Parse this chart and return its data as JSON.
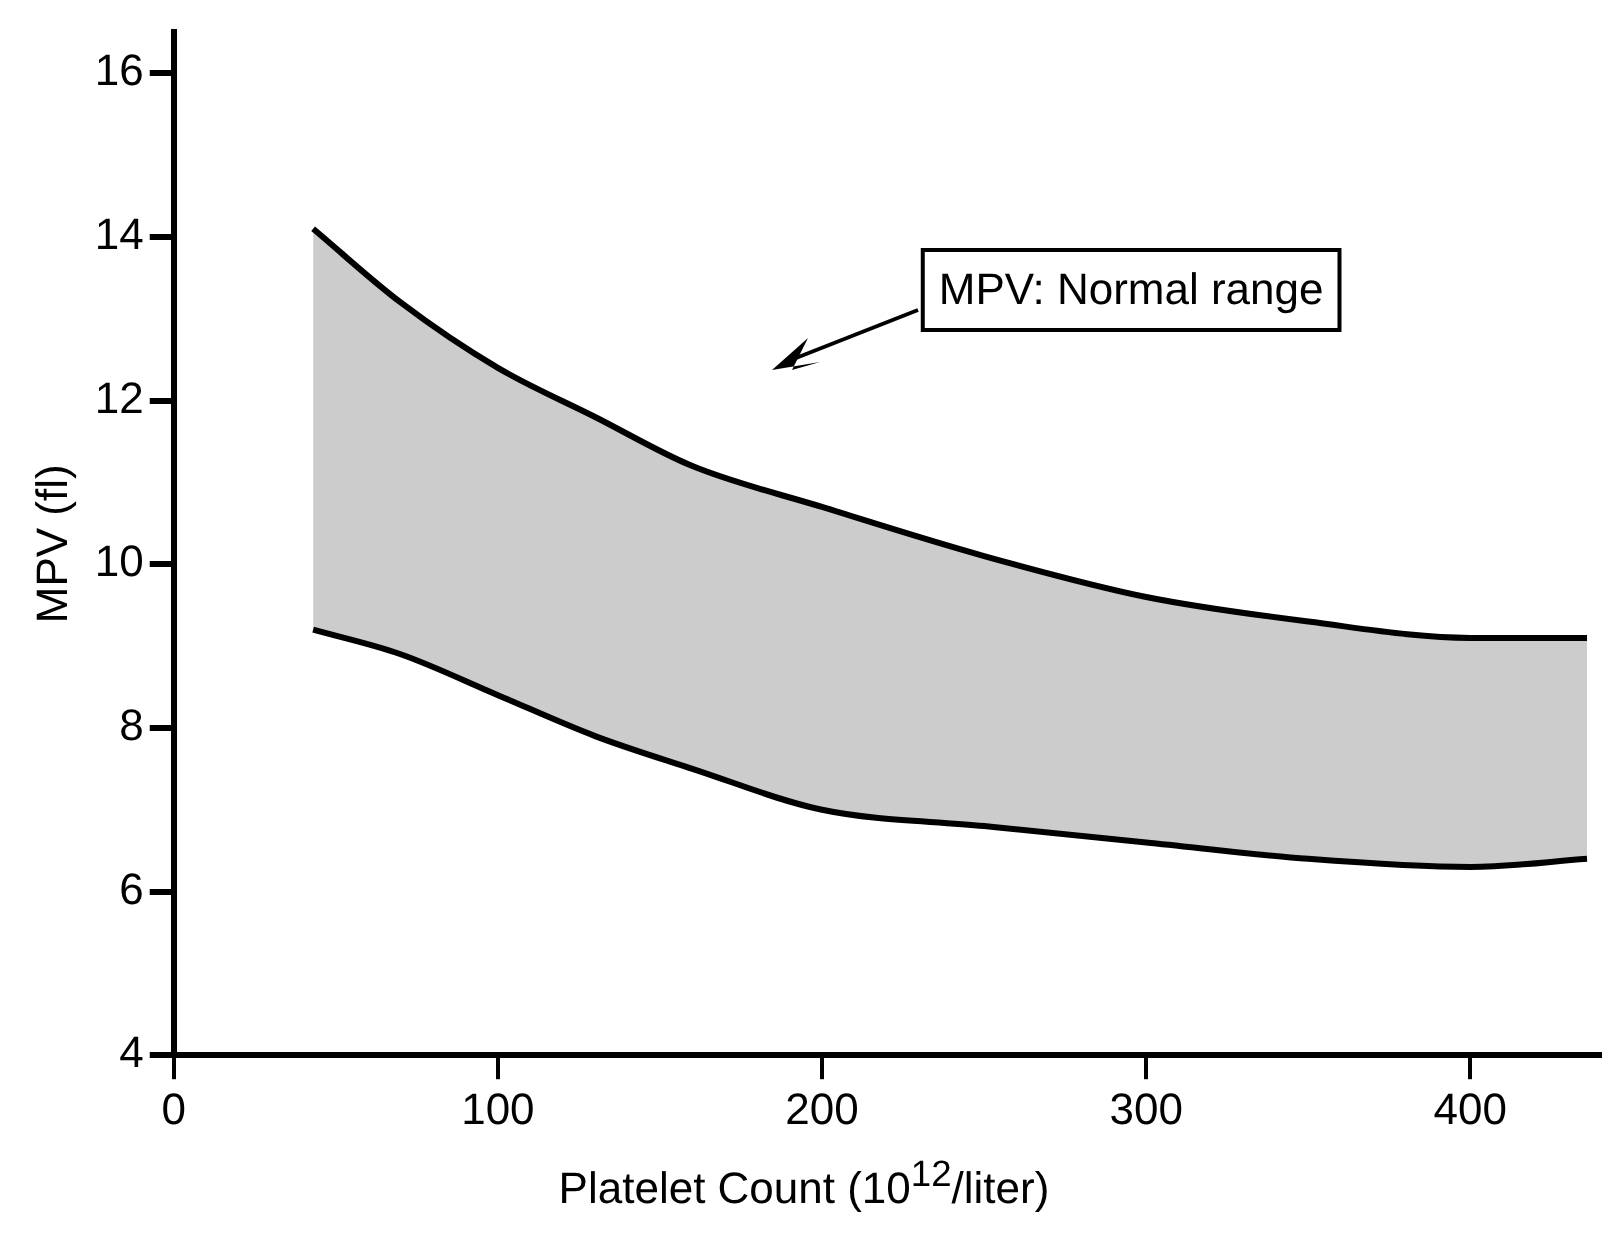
{
  "chart_data": {
    "type": "line",
    "xlabel": "Platelet Count (10$^{12}$/liter)",
    "ylabel": "MPV (fl)",
    "x": [
      43,
      70,
      100,
      130,
      160,
      200,
      250,
      300,
      350,
      400,
      436
    ],
    "series": [
      {
        "color": "#000000",
        "values": [
          9.2,
          8.9,
          8.4,
          7.9,
          7.5,
          7.0,
          6.8,
          6.6,
          6.4,
          6.3,
          6.4
        ]
      },
      {
        "type": "area",
        "color": "#000000",
        "values": [
          14.1,
          13.2,
          12.4,
          11.8,
          11.2,
          10.7,
          10.1,
          9.6,
          9.3,
          9.1,
          9.1
        ]
      }
    ],
    "xlim": [
      0,
      440
    ],
    "xticks": [
      0,
      100,
      200,
      300,
      400
    ],
    "ylim": [
      4,
      16.5
    ],
    "yticks": [
      4,
      6,
      8,
      10,
      12,
      14,
      16
    ],
    "annotations": [
      "MPV: Normal range"
    ],
    "marker": "none",
    "line_style": "solid",
    "legend": false,
    "grid": false
  }
}
